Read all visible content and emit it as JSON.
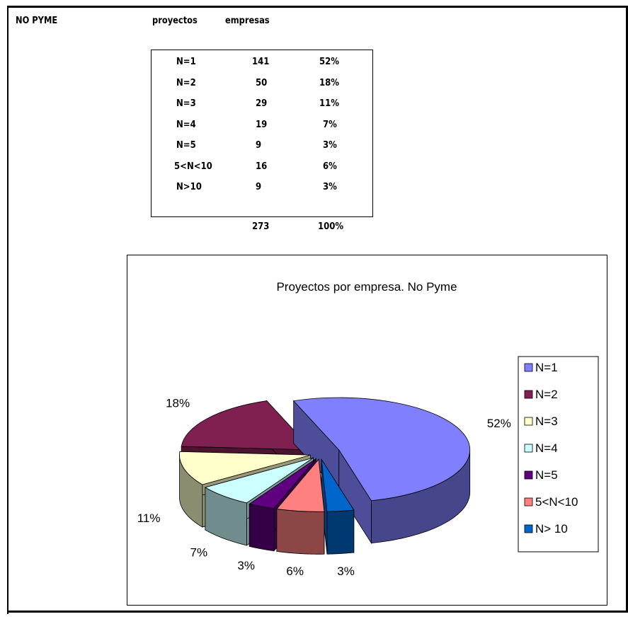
{
  "header": {
    "category": "NO PYME",
    "col_projects": "proyectos",
    "col_companies": "empresas"
  },
  "table": {
    "rows": [
      {
        "label": "N=1",
        "count": "141",
        "pct": "52%"
      },
      {
        "label": "N=2",
        "count": "50",
        "pct": "18%"
      },
      {
        "label": "N=3",
        "count": "29",
        "pct": "11%"
      },
      {
        "label": "N=4",
        "count": "19",
        "pct": "7%"
      },
      {
        "label": "N=5",
        "count": "9",
        "pct": "3%"
      },
      {
        "label": "5<N<10",
        "count": "16",
        "pct": "6%"
      },
      {
        "label": "N>10",
        "count": "9",
        "pct": "3%"
      }
    ],
    "total_count": "273",
    "total_pct": "100%"
  },
  "chart_data": {
    "type": "pie",
    "title": "Proyectos por empresa. No Pyme",
    "categories": [
      "N=1",
      "N=2",
      "N=3",
      "N=4",
      "N=5",
      "5<N<10",
      "N> 10"
    ],
    "values": [
      141,
      50,
      29,
      19,
      9,
      16,
      9
    ],
    "data_labels": [
      "52%",
      "18%",
      "11%",
      "7%",
      "3%",
      "6%",
      "3%"
    ],
    "colors": [
      "#8080ff",
      "#802050",
      "#ffffcc",
      "#ccffff",
      "#600080",
      "#ff8080",
      "#0066cc"
    ],
    "legend_position": "right",
    "style": "3d-exploded"
  }
}
